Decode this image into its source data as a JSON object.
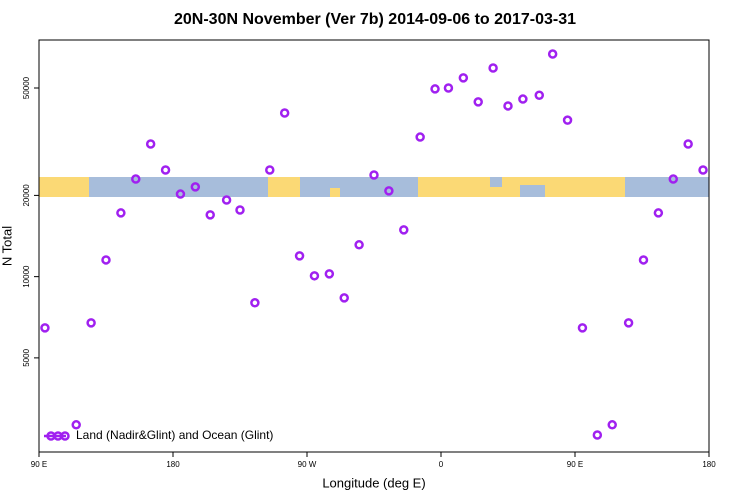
{
  "chart_data": {
    "type": "scatter",
    "title": "20N-30N November (Ver 7b)   2014-09-06 to 2017-03-31",
    "x_label": "Longitude (deg E)",
    "y_label": "N Total",
    "log_y": true,
    "xlim": [
      90,
      540
    ],
    "ylim": [
      2240,
      75300
    ],
    "xticks": [
      {
        "value": 90,
        "label": "90 E"
      },
      180,
      {
        "value": 270,
        "label": "90 W"
      },
      {
        "value": 360,
        "label": "0"
      },
      {
        "value": 450,
        "label": "90 E"
      },
      {
        "value": 540,
        "label": "180"
      }
    ],
    "yticks": [
      5000,
      10000,
      20000,
      50000
    ],
    "legend": "bottom-left",
    "series": [
      {
        "name": "Land (Nadir&Glint) and Ocean (Glint)",
        "color": "#a020f0",
        "x": [
          94,
          115,
          125,
          135,
          145,
          155,
          165,
          175,
          185,
          195,
          205,
          216,
          225,
          235,
          245,
          255,
          265,
          275,
          285,
          295,
          305,
          315,
          325,
          335,
          346,
          356,
          365,
          375,
          385,
          395,
          405,
          415,
          426,
          435,
          445,
          455,
          465,
          475,
          486,
          496,
          506,
          516,
          526,
          536
        ],
        "values": [
          6460,
          2825,
          6740,
          11530,
          17220,
          23000,
          31000,
          24840,
          20230,
          21500,
          16940,
          19230,
          17660,
          8000,
          24840,
          40400,
          11940,
          10070,
          10240,
          8340,
          13120,
          23800,
          20780,
          14900,
          32900,
          49600,
          50000,
          54500,
          44400,
          59300,
          42900,
          45500,
          47000,
          66800,
          38000,
          6460,
          2590,
          2825,
          6740,
          11530,
          17220,
          23000,
          31000,
          24840
        ]
      }
    ]
  }
}
